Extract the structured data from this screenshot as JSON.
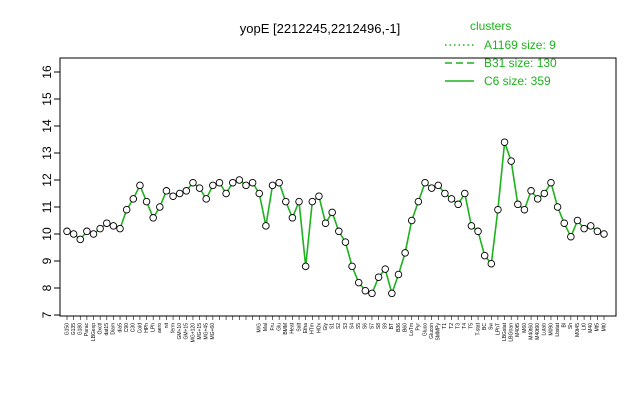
{
  "chart_data": {
    "type": "line",
    "title": "yopE [2212245,2212496,-1]",
    "xlabel": "",
    "ylabel": "",
    "ylim": [
      7,
      16
    ],
    "yticks": [
      7,
      8,
      9,
      10,
      11,
      12,
      13,
      14,
      15,
      16
    ],
    "grid": false,
    "legend_placement": "top-right",
    "legend": {
      "title": "clusters",
      "entries": [
        {
          "label": "A1169 size: 9",
          "style": "dotted"
        },
        {
          "label": "B31 size: 130",
          "style": "dashed"
        },
        {
          "label": "C6 size: 359",
          "style": "solid"
        }
      ]
    },
    "colors": {
      "line": "#1db31d",
      "points": "#000000",
      "legend": "#1db31d"
    },
    "categories": [
      "G150",
      "G135",
      "G180",
      "Parac",
      "LBGexp",
      "Oxctl",
      "dat15",
      "Diam",
      "dia5",
      "C90",
      "C30",
      "Cold",
      "HPh",
      "LPh",
      "aero",
      "nit",
      "ferm",
      "GM+10",
      "GM+15",
      "MG+120",
      "MG+15",
      "MG+45",
      "MG+60",
      "MG+10",
      "MG+5",
      "GM+25",
      "UM+30",
      "GM+45",
      "GM+60",
      "M/G",
      "Mal",
      "Fru",
      "Glu",
      "BMM",
      "Heat",
      "Salt",
      "Etha",
      "HTm",
      "HOx",
      "Gly",
      "S1",
      "S2",
      "S3",
      "S4",
      "S5",
      "S6",
      "S7",
      "S8",
      "S9",
      "BT",
      "B36",
      "B60",
      "LoTm",
      "Pyr",
      "Gluco",
      "Glucon",
      "SMMPy",
      "T1",
      "T2",
      "T3",
      "T4",
      "T5",
      "T-stat",
      "BC",
      "Sw",
      "LPhT",
      "LBGstat",
      "LBGtran",
      "M40t5",
      "M60",
      "M40t60",
      "M40t90",
      "Lutab",
      "M090",
      "Lbstat",
      "Bl",
      "Sh",
      "M0t45",
      "Lt0",
      "M40",
      "Mt5",
      "Mt0"
    ],
    "xtick_labels_visible": [
      "G150",
      "G135",
      "G180",
      "Parac",
      "LBGexp",
      "Oxctl",
      "dat15",
      "Diam",
      "dia5",
      "C90",
      "C30",
      "Cold",
      "HPh",
      "LPh",
      "aero",
      "nit",
      "ferm",
      "GM+10",
      "GM+15",
      "MG+120",
      "MG+15",
      "MG+45",
      "MG+60",
      "M/G",
      "Mal",
      "Fru",
      "Glu",
      "BMM",
      "Heat",
      "Salt",
      "Etha",
      "HTm",
      "HOx",
      "Gly",
      "S1",
      "S2",
      "S3",
      "S4",
      "S5",
      "S6",
      "S7",
      "S8",
      "S9",
      "BT",
      "B36",
      "B60",
      "LoTm",
      "Pyr",
      "Gluco",
      "Glucon",
      "SMMPy",
      "T1",
      "T2",
      "T3",
      "T4",
      "T5",
      "T-stat",
      "BC",
      "Sw",
      "LPhT",
      "LBGstat",
      "LBGtran",
      "M40t5",
      "M60",
      "M40t60",
      "M40t90",
      "Lutab",
      "M090",
      "Lbstat",
      "Bl",
      "Sh",
      "M0t45",
      "Lt0",
      "M40",
      "Mt5",
      "Mt0"
    ],
    "series": [
      {
        "values": [
          10.1,
          10.0,
          9.8,
          10.1,
          10.0,
          10.2,
          10.4,
          10.3,
          10.2,
          10.9,
          11.3,
          11.8,
          11.2,
          10.6,
          11.0,
          11.6,
          11.4,
          11.5,
          11.6,
          11.9,
          11.7,
          11.3,
          11.8,
          11.9,
          11.5,
          11.9,
          12.0,
          11.8,
          11.9,
          11.5,
          10.3,
          11.8,
          11.9,
          11.2,
          10.6,
          11.2,
          8.8,
          11.2,
          11.4,
          10.4,
          10.8,
          10.1,
          9.7,
          8.8,
          8.2,
          7.9,
          7.8,
          8.4,
          8.7,
          7.8,
          8.5,
          9.3,
          10.5,
          11.2,
          11.9,
          11.7,
          11.8,
          11.5,
          11.3,
          11.1,
          11.5,
          10.3,
          10.1,
          9.2,
          8.9,
          10.9,
          13.4,
          12.7,
          11.1,
          10.9,
          11.6,
          11.3,
          11.5,
          11.9,
          11.0,
          10.4,
          9.9,
          10.5,
          10.2,
          10.3,
          10.1,
          10.0
        ]
      }
    ]
  }
}
